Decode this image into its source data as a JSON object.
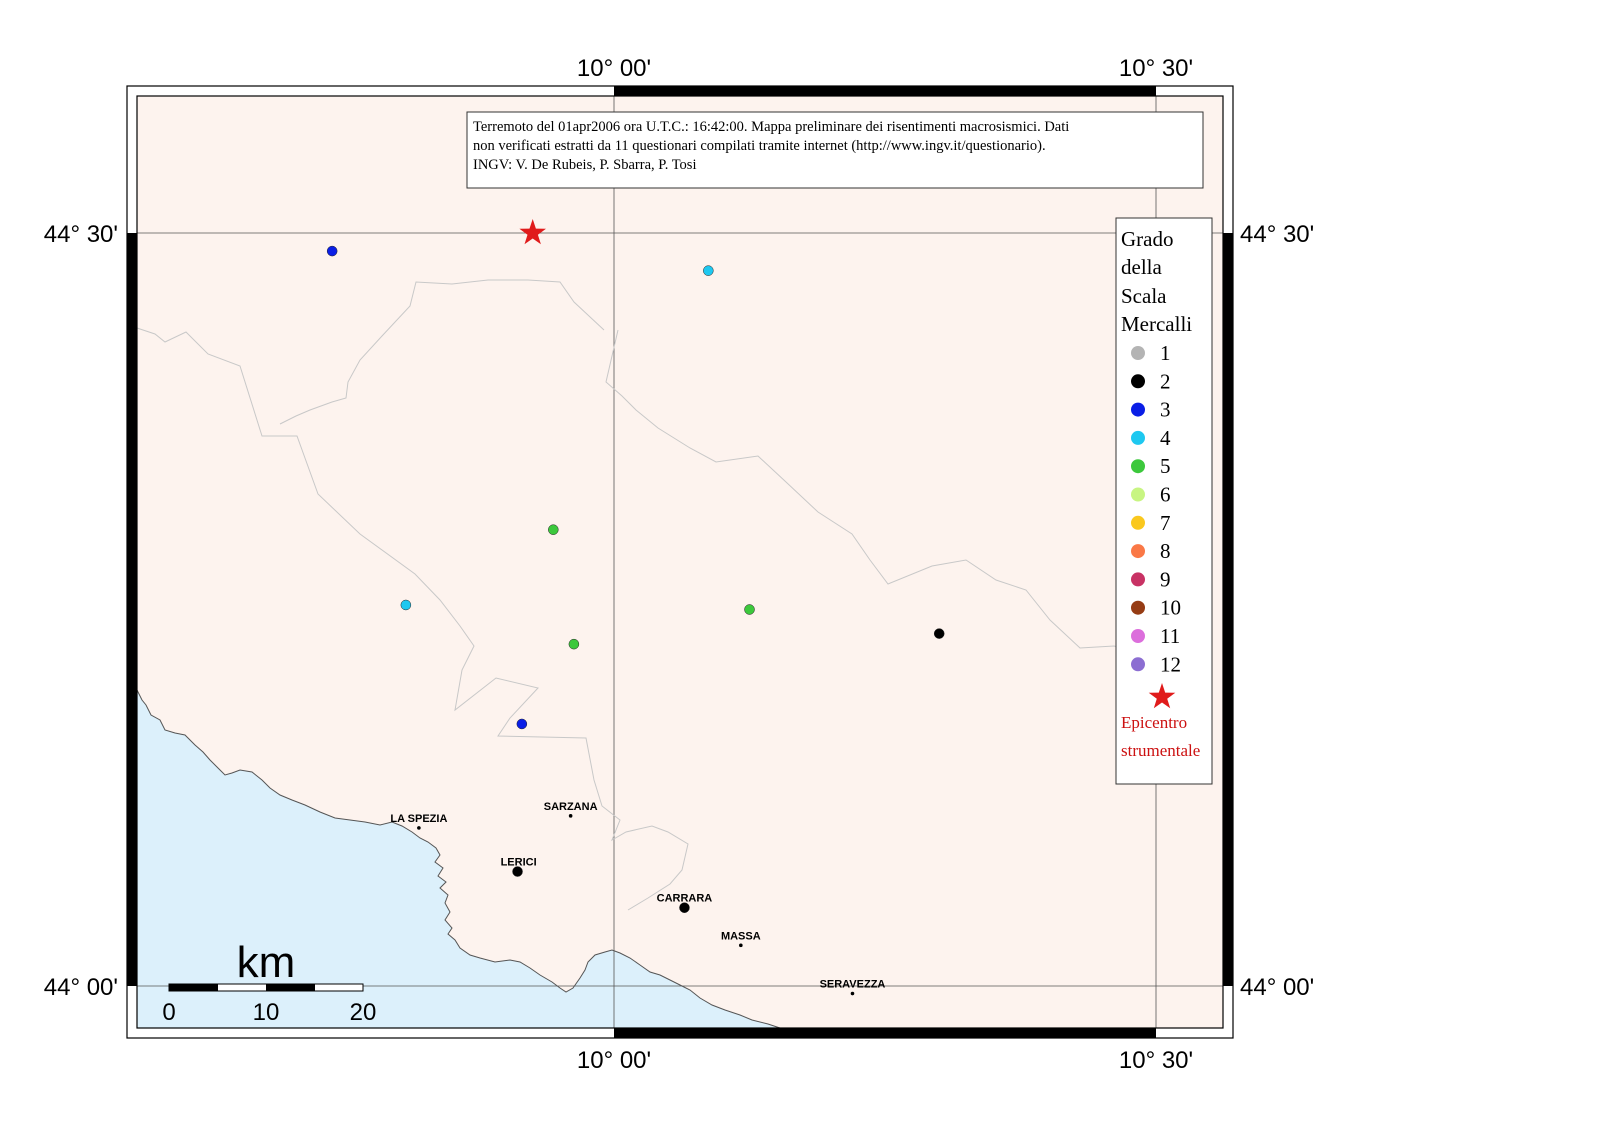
{
  "colors": {
    "land": "#fdf3ee",
    "sea": "#dcf0fb",
    "border_line": "#c8c8c8",
    "coast_line": "#555555",
    "star": "#e01b1b",
    "epicentre_text": "#cc1111"
  },
  "grid": {
    "lon_top_left": "10° 00'",
    "lon_top_right": "10° 30'",
    "lon_bottom_left": "10° 00'",
    "lon_bottom_right": "10° 30'",
    "lat_upper_left": "44° 30'",
    "lat_upper_right": "44° 30'",
    "lat_lower_left": "44° 00'",
    "lat_lower_right": "44° 00'"
  },
  "info_box": {
    "line1": "Terremoto del 01apr2006 ora U.T.C.: 16:42:00.  Mappa preliminare dei risentimenti macrosismici.  Dati",
    "line2": "non verificati estratti da 11 questionari compilati tramite internet (http://www.ingv.it/questionario).",
    "line3": "INGV: V.  De Rubeis, P.  Sbarra, P.  Tosi"
  },
  "legend": {
    "title_lines": [
      "Grado",
      "della",
      "Scala",
      "Mercalli"
    ],
    "grades": [
      {
        "label": "1",
        "color": "#b4b4b4"
      },
      {
        "label": "2",
        "color": "#000000"
      },
      {
        "label": "3",
        "color": "#0a1ee6"
      },
      {
        "label": "4",
        "color": "#1ec8f0"
      },
      {
        "label": "5",
        "color": "#3cc83c"
      },
      {
        "label": "6",
        "color": "#c8f582"
      },
      {
        "label": "7",
        "color": "#fac81e"
      },
      {
        "label": "8",
        "color": "#fa7846"
      },
      {
        "label": "9",
        "color": "#c83264"
      },
      {
        "label": "10",
        "color": "#963c14"
      },
      {
        "label": "11",
        "color": "#dc6edc"
      },
      {
        "label": "12",
        "color": "#8c6ed2"
      }
    ],
    "epicentre_line1": "Epicentro",
    "epicentre_line2": "strumentale"
  },
  "scale_bar": {
    "unit": "km",
    "ticks": [
      "0",
      "10",
      "20"
    ]
  },
  "cities": [
    {
      "name": "LA SPEZIA",
      "lon": 9.82,
      "lat": 44.105
    },
    {
      "name": "SARZANA",
      "lon": 9.96,
      "lat": 44.113
    },
    {
      "name": "LERICI",
      "lon": 9.912,
      "lat": 44.076
    },
    {
      "name": "CARRARA",
      "lon": 10.065,
      "lat": 44.052
    },
    {
      "name": "MASSA",
      "lon": 10.117,
      "lat": 44.027
    },
    {
      "name": "SERAVEZZA",
      "lon": 10.22,
      "lat": 43.995
    }
  ],
  "epicentre": {
    "lon": 9.925,
    "lat": 44.5
  },
  "observations": [
    {
      "lon": 9.74,
      "lat": 44.488,
      "grade": 3
    },
    {
      "lon": 10.087,
      "lat": 44.475,
      "grade": 4
    },
    {
      "lon": 9.944,
      "lat": 44.303,
      "grade": 5
    },
    {
      "lon": 9.808,
      "lat": 44.253,
      "grade": 4
    },
    {
      "lon": 10.125,
      "lat": 44.25,
      "grade": 5
    },
    {
      "lon": 10.3,
      "lat": 44.234,
      "grade": 2
    },
    {
      "lon": 9.963,
      "lat": 44.227,
      "grade": 5
    },
    {
      "lon": 9.915,
      "lat": 44.174,
      "grade": 3
    },
    {
      "lon": 9.911,
      "lat": 44.076,
      "grade": 2
    },
    {
      "lon": 10.065,
      "lat": 44.052,
      "grade": 2
    }
  ]
}
